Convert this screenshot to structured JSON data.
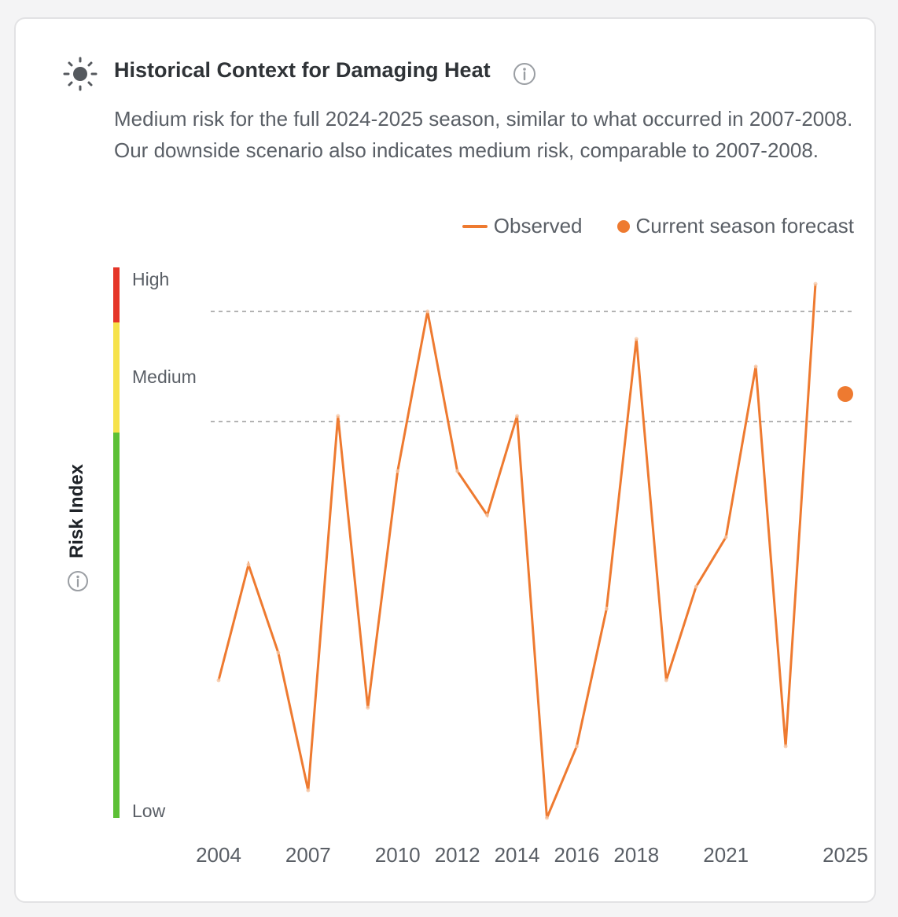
{
  "card": {
    "title": "Historical Context for Damaging Heat",
    "icon": "sun-icon",
    "info_icon": "info-icon",
    "description": "Medium risk for the full 2024-2025 season, similar to what occurred in 2007-2008. Our downside scenario also indicates medium risk, comparable to 2007-2008."
  },
  "legend": {
    "observed": "Observed",
    "forecast": "Current season forecast"
  },
  "risk_scale": {
    "axis_title": "Risk Index",
    "high": "High",
    "medium": "Medium",
    "low": "Low",
    "colors": {
      "high": "#e53528",
      "medium": "#f6e24a",
      "low": "#5cc035"
    }
  },
  "colors": {
    "series": "#ee7a30",
    "threshold": "#9a9a9a"
  },
  "chart_data": {
    "type": "line",
    "xlabel": "",
    "ylabel": "Risk Index",
    "x_ticks": [
      2004,
      2007,
      2010,
      2012,
      2014,
      2016,
      2018,
      2021,
      2025
    ],
    "xlim": [
      2004,
      2025
    ],
    "ylim": [
      0,
      1
    ],
    "thresholds": [
      0.72,
      0.92
    ],
    "grid": false,
    "legend_position": "top-right",
    "series": [
      {
        "name": "Observed",
        "x": [
          2004,
          2005,
          2006,
          2007,
          2008,
          2009,
          2010,
          2011,
          2012,
          2013,
          2014,
          2015,
          2016,
          2017,
          2018,
          2019,
          2020,
          2021,
          2022,
          2023,
          2024
        ],
        "values": [
          0.25,
          0.46,
          0.3,
          0.05,
          0.73,
          0.2,
          0.63,
          0.92,
          0.63,
          0.55,
          0.73,
          0.0,
          0.13,
          0.38,
          0.87,
          0.25,
          0.42,
          0.51,
          0.82,
          0.13,
          0.97
        ]
      },
      {
        "name": "Current season forecast",
        "x": [
          2025
        ],
        "values": [
          0.77
        ]
      }
    ]
  }
}
